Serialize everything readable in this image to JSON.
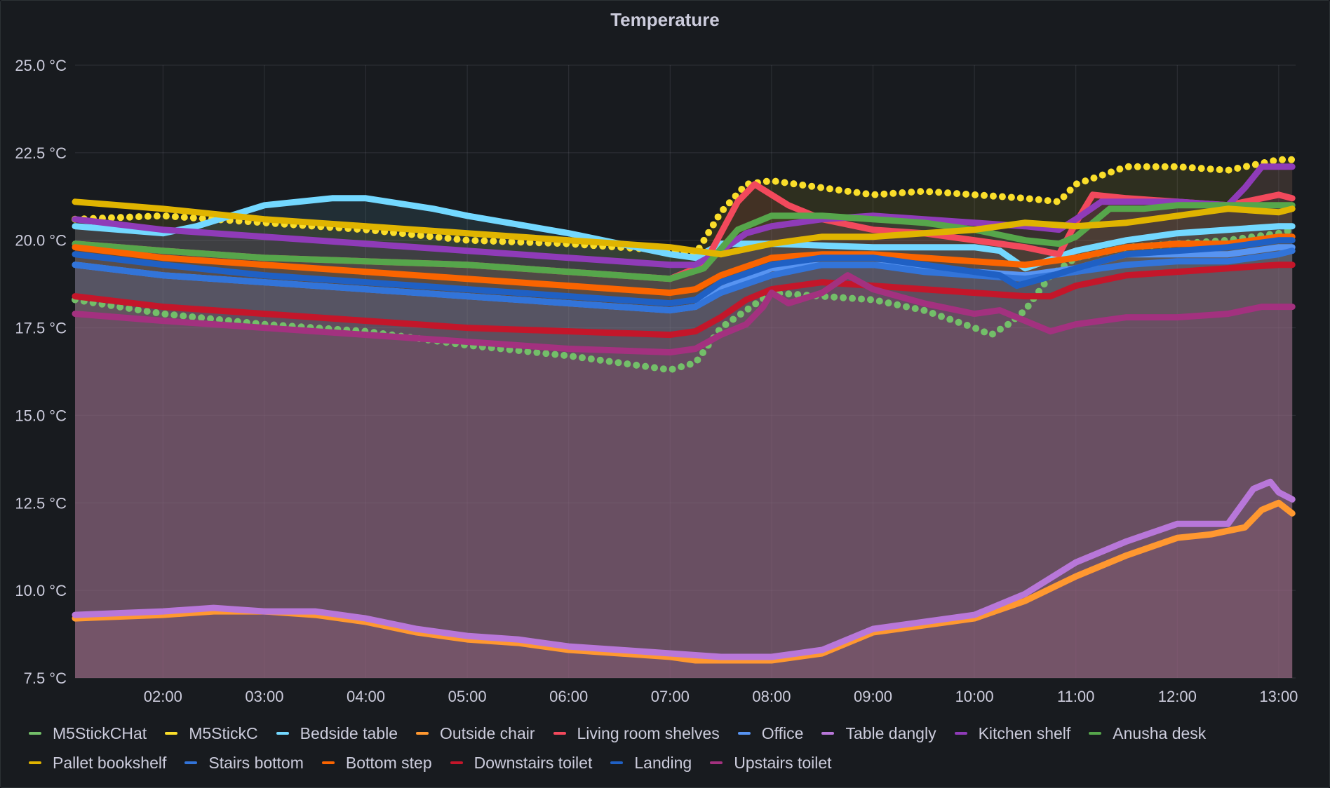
{
  "panel": {
    "title": "Temperature"
  },
  "chart_data": {
    "type": "line",
    "title": "Temperature",
    "xlabel": "",
    "ylabel": "",
    "y_unit": "°C",
    "ylim": [
      7.5,
      25.0
    ],
    "xlim": [
      "01:08",
      "13:10"
    ],
    "y_ticks": [
      "7.5 °C",
      "10.0 °C",
      "12.5 °C",
      "15.0 °C",
      "17.5 °C",
      "20.0 °C",
      "22.5 °C",
      "25.0 °C"
    ],
    "x_ticks": [
      "02:00",
      "03:00",
      "04:00",
      "05:00",
      "06:00",
      "07:00",
      "08:00",
      "09:00",
      "10:00",
      "11:00",
      "12:00",
      "13:00"
    ],
    "grid": true,
    "legend_position": "bottom",
    "series": [
      {
        "name": "M5StickCHat",
        "color": "#73bf69",
        "style": "points",
        "fill": true,
        "x": [
          "01:08",
          "02:00",
          "03:00",
          "04:00",
          "05:00",
          "06:00",
          "07:00",
          "07:15",
          "07:30",
          "07:45",
          "08:00",
          "08:30",
          "09:00",
          "09:30",
          "10:00",
          "10:10",
          "10:20",
          "10:30",
          "10:45",
          "11:00",
          "11:30",
          "12:00",
          "12:30",
          "13:00",
          "13:08"
        ],
        "values": [
          18.3,
          17.9,
          17.6,
          17.4,
          17.0,
          16.7,
          16.3,
          16.5,
          17.5,
          18.0,
          18.5,
          18.4,
          18.3,
          18.0,
          17.5,
          17.3,
          17.6,
          18.0,
          19.0,
          19.5,
          19.8,
          19.9,
          20.0,
          20.2,
          20.3
        ]
      },
      {
        "name": "M5StickC",
        "color": "#fade2a",
        "style": "points",
        "fill": true,
        "x": [
          "01:08",
          "02:00",
          "03:00",
          "04:00",
          "05:00",
          "06:00",
          "07:00",
          "07:15",
          "07:30",
          "07:45",
          "08:00",
          "08:30",
          "09:00",
          "09:30",
          "10:00",
          "10:30",
          "10:50",
          "11:00",
          "11:30",
          "12:00",
          "12:30",
          "13:00",
          "13:08"
        ],
        "values": [
          20.6,
          20.7,
          20.5,
          20.3,
          20.0,
          19.9,
          19.7,
          19.6,
          20.8,
          21.6,
          21.7,
          21.5,
          21.3,
          21.4,
          21.3,
          21.2,
          21.1,
          21.6,
          22.1,
          22.1,
          22.0,
          22.3,
          22.3
        ]
      },
      {
        "name": "Bedside table",
        "color": "#73d8ff",
        "style": "line",
        "fill": true,
        "x": [
          "01:08",
          "02:00",
          "02:20",
          "03:00",
          "03:40",
          "04:00",
          "04:40",
          "05:00",
          "06:00",
          "07:00",
          "07:15",
          "07:30",
          "08:00",
          "09:00",
          "10:00",
          "10:15",
          "10:30",
          "11:00",
          "11:30",
          "12:00",
          "12:30",
          "13:00",
          "13:08"
        ],
        "values": [
          20.4,
          20.2,
          20.4,
          21.0,
          21.2,
          21.2,
          20.9,
          20.7,
          20.2,
          19.6,
          19.5,
          19.9,
          19.9,
          19.8,
          19.8,
          19.7,
          19.2,
          19.7,
          20.0,
          20.2,
          20.3,
          20.4,
          20.4
        ]
      },
      {
        "name": "Outside chair",
        "color": "#ff9830",
        "style": "line",
        "fill": true,
        "x": [
          "01:08",
          "02:00",
          "02:30",
          "03:00",
          "03:30",
          "04:00",
          "04:30",
          "05:00",
          "05:30",
          "06:00",
          "06:30",
          "07:00",
          "07:15",
          "07:30",
          "08:00",
          "08:30",
          "09:00",
          "09:30",
          "10:00",
          "10:30",
          "11:00",
          "11:30",
          "12:00",
          "12:20",
          "12:40",
          "12:50",
          "13:00",
          "13:08"
        ],
        "values": [
          9.2,
          9.3,
          9.4,
          9.4,
          9.3,
          9.1,
          8.8,
          8.6,
          8.5,
          8.3,
          8.2,
          8.1,
          8.0,
          8.0,
          8.0,
          8.2,
          8.8,
          9.0,
          9.2,
          9.7,
          10.4,
          11.0,
          11.5,
          11.6,
          11.8,
          12.3,
          12.5,
          12.2
        ]
      },
      {
        "name": "Living room shelves",
        "color": "#f2495c",
        "style": "line",
        "fill": true,
        "x": [
          "01:08",
          "02:00",
          "03:00",
          "04:00",
          "05:00",
          "06:00",
          "07:00",
          "07:20",
          "07:40",
          "07:50",
          "08:10",
          "08:30",
          "09:00",
          "09:30",
          "10:00",
          "10:30",
          "10:50",
          "11:00",
          "11:10",
          "11:30",
          "12:00",
          "12:30",
          "13:00",
          "13:08"
        ],
        "values": [
          19.9,
          19.7,
          19.5,
          19.4,
          19.3,
          19.1,
          18.9,
          19.3,
          21.1,
          21.6,
          21.0,
          20.6,
          20.3,
          20.2,
          20.0,
          19.8,
          19.6,
          20.5,
          21.3,
          21.2,
          21.1,
          21.0,
          21.3,
          21.2
        ]
      },
      {
        "name": "Office",
        "color": "#5794f2",
        "style": "line",
        "fill": true,
        "x": [
          "01:08",
          "02:00",
          "03:00",
          "04:00",
          "05:00",
          "06:00",
          "07:00",
          "07:15",
          "07:30",
          "08:00",
          "08:30",
          "09:00",
          "09:30",
          "10:00",
          "10:30",
          "11:00",
          "11:30",
          "12:00",
          "12:30",
          "13:00",
          "13:08"
        ],
        "values": [
          19.3,
          19.0,
          18.8,
          18.6,
          18.4,
          18.2,
          18.0,
          18.1,
          18.6,
          19.2,
          19.3,
          19.3,
          19.2,
          19.1,
          19.0,
          19.2,
          19.6,
          19.6,
          19.6,
          19.8,
          19.8
        ]
      },
      {
        "name": "Table dangly",
        "color": "#b877d9",
        "style": "line",
        "fill": true,
        "x": [
          "01:08",
          "02:00",
          "02:30",
          "03:00",
          "03:30",
          "04:00",
          "04:30",
          "05:00",
          "05:30",
          "06:00",
          "06:30",
          "07:00",
          "07:30",
          "08:00",
          "08:30",
          "09:00",
          "09:30",
          "10:00",
          "10:30",
          "11:00",
          "11:30",
          "12:00",
          "12:30",
          "12:45",
          "12:55",
          "13:00",
          "13:08"
        ],
        "values": [
          9.3,
          9.4,
          9.5,
          9.4,
          9.4,
          9.2,
          8.9,
          8.7,
          8.6,
          8.4,
          8.3,
          8.2,
          8.1,
          8.1,
          8.3,
          8.9,
          9.1,
          9.3,
          9.9,
          10.8,
          11.4,
          11.9,
          11.9,
          12.9,
          13.1,
          12.8,
          12.6
        ]
      },
      {
        "name": "Kitchen shelf",
        "color": "#8f3bb8",
        "style": "line",
        "fill": true,
        "x": [
          "01:08",
          "02:00",
          "03:00",
          "04:00",
          "05:00",
          "06:00",
          "07:00",
          "07:15",
          "07:30",
          "07:45",
          "08:00",
          "08:30",
          "09:00",
          "09:30",
          "10:00",
          "10:30",
          "10:50",
          "11:00",
          "11:15",
          "11:30",
          "12:00",
          "12:30",
          "12:40",
          "12:50",
          "13:00",
          "13:08"
        ],
        "values": [
          20.6,
          20.3,
          20.1,
          19.9,
          19.7,
          19.5,
          19.3,
          19.3,
          19.7,
          20.2,
          20.4,
          20.6,
          20.7,
          20.6,
          20.5,
          20.4,
          20.3,
          20.6,
          21.1,
          21.1,
          21.1,
          21.0,
          21.5,
          22.1,
          22.1,
          22.1
        ]
      },
      {
        "name": "Anusha desk",
        "color": "#56a64b",
        "style": "line",
        "fill": true,
        "x": [
          "01:08",
          "02:00",
          "03:00",
          "04:00",
          "05:00",
          "06:00",
          "07:00",
          "07:20",
          "07:40",
          "08:00",
          "08:30",
          "09:00",
          "09:30",
          "10:00",
          "10:30",
          "10:50",
          "11:00",
          "11:20",
          "11:40",
          "12:00",
          "12:30",
          "13:00",
          "13:08"
        ],
        "values": [
          19.9,
          19.7,
          19.5,
          19.4,
          19.3,
          19.1,
          18.9,
          19.2,
          20.3,
          20.7,
          20.7,
          20.6,
          20.5,
          20.3,
          20.0,
          19.9,
          20.1,
          20.9,
          20.9,
          21.0,
          21.0,
          21.0,
          21.0
        ]
      },
      {
        "name": "Pallet bookshelf",
        "color": "#e0b400",
        "style": "line",
        "fill": false,
        "x": [
          "01:08",
          "02:00",
          "03:00",
          "04:00",
          "05:00",
          "06:00",
          "07:00",
          "07:30",
          "08:00",
          "08:30",
          "09:00",
          "09:30",
          "10:00",
          "10:30",
          "11:00",
          "11:30",
          "12:00",
          "12:30",
          "13:00",
          "13:08"
        ],
        "values": [
          21.1,
          20.9,
          20.6,
          20.4,
          20.2,
          20.0,
          19.8,
          19.6,
          19.9,
          20.1,
          20.1,
          20.2,
          20.3,
          20.5,
          20.4,
          20.5,
          20.7,
          20.9,
          20.8,
          20.9
        ]
      },
      {
        "name": "Stairs bottom",
        "color": "#3274d9",
        "style": "line",
        "fill": true,
        "x": [
          "01:08",
          "02:00",
          "03:00",
          "04:00",
          "05:00",
          "06:00",
          "07:00",
          "07:15",
          "07:30",
          "08:00",
          "08:30",
          "09:00",
          "09:30",
          "10:00",
          "10:30",
          "11:00",
          "11:30",
          "12:00",
          "12:30",
          "13:00",
          "13:08"
        ],
        "values": [
          19.3,
          19.0,
          18.8,
          18.6,
          18.4,
          18.2,
          18.0,
          18.1,
          18.5,
          19.0,
          19.3,
          19.3,
          19.1,
          19.0,
          18.9,
          19.1,
          19.3,
          19.4,
          19.4,
          19.6,
          19.7
        ]
      },
      {
        "name": "Bottom step",
        "color": "#fa6400",
        "style": "line",
        "fill": true,
        "x": [
          "01:08",
          "02:00",
          "03:00",
          "04:00",
          "05:00",
          "06:00",
          "07:00",
          "07:15",
          "07:30",
          "08:00",
          "08:30",
          "09:00",
          "09:30",
          "10:00",
          "10:30",
          "11:00",
          "11:30",
          "12:00",
          "12:30",
          "13:00",
          "13:08"
        ],
        "values": [
          19.8,
          19.5,
          19.3,
          19.1,
          18.9,
          18.7,
          18.5,
          18.6,
          19.0,
          19.5,
          19.6,
          19.6,
          19.5,
          19.4,
          19.3,
          19.5,
          19.8,
          19.9,
          19.9,
          20.1,
          20.1
        ]
      },
      {
        "name": "Downstairs toilet",
        "color": "#c4162a",
        "style": "line",
        "fill": true,
        "x": [
          "01:08",
          "02:00",
          "03:00",
          "04:00",
          "05:00",
          "06:00",
          "07:00",
          "07:15",
          "07:30",
          "07:45",
          "08:00",
          "08:30",
          "09:00",
          "09:30",
          "10:00",
          "10:30",
          "10:45",
          "11:00",
          "11:30",
          "12:00",
          "12:30",
          "13:00",
          "13:08"
        ],
        "values": [
          18.4,
          18.1,
          17.9,
          17.7,
          17.5,
          17.4,
          17.3,
          17.4,
          17.8,
          18.3,
          18.6,
          18.8,
          18.7,
          18.6,
          18.5,
          18.4,
          18.4,
          18.7,
          19.0,
          19.1,
          19.2,
          19.3,
          19.3
        ]
      },
      {
        "name": "Landing",
        "color": "#1f60c4",
        "style": "line",
        "fill": true,
        "x": [
          "01:08",
          "02:00",
          "03:00",
          "04:00",
          "05:00",
          "06:00",
          "07:00",
          "07:15",
          "07:30",
          "08:00",
          "08:30",
          "09:00",
          "09:30",
          "10:00",
          "10:15",
          "10:25",
          "10:40",
          "11:00",
          "11:30",
          "12:00",
          "12:30",
          "13:00",
          "13:08"
        ],
        "values": [
          19.6,
          19.3,
          19.0,
          18.8,
          18.6,
          18.4,
          18.2,
          18.3,
          18.8,
          19.3,
          19.5,
          19.5,
          19.3,
          19.1,
          19.0,
          18.7,
          18.9,
          19.2,
          19.6,
          19.7,
          19.8,
          20.0,
          20.0
        ]
      },
      {
        "name": "Upstairs toilet",
        "color": "#a3317f",
        "style": "line",
        "fill": true,
        "x": [
          "01:08",
          "02:00",
          "03:00",
          "04:00",
          "05:00",
          "06:00",
          "07:00",
          "07:15",
          "07:30",
          "07:45",
          "07:55",
          "08:00",
          "08:10",
          "08:30",
          "08:45",
          "09:00",
          "09:30",
          "10:00",
          "10:15",
          "10:30",
          "10:45",
          "11:00",
          "11:30",
          "12:00",
          "12:30",
          "12:50",
          "13:00",
          "13:08"
        ],
        "values": [
          17.9,
          17.7,
          17.5,
          17.3,
          17.1,
          16.9,
          16.8,
          16.9,
          17.3,
          17.6,
          18.1,
          18.5,
          18.2,
          18.5,
          19.0,
          18.6,
          18.2,
          17.9,
          18.0,
          17.7,
          17.4,
          17.6,
          17.8,
          17.8,
          17.9,
          18.1,
          18.1,
          18.1
        ]
      }
    ]
  }
}
